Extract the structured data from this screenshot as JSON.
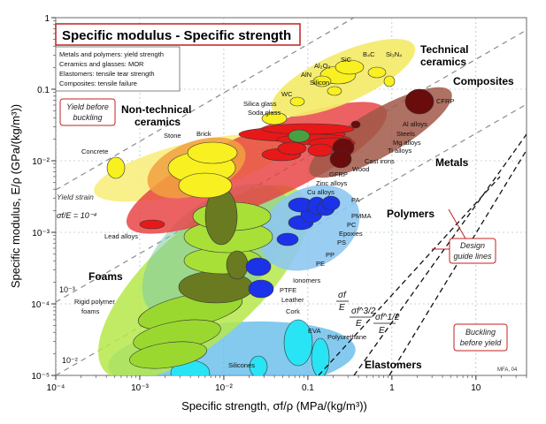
{
  "chart_data": {
    "type": "scatter",
    "title": "Specific modulus - Specific strength",
    "xlabel": "Specific strength, σf/ρ (MPa/(kg/m³))",
    "ylabel": "Specific modulus, E/ρ (GPa/(kg/m³))",
    "xscale": "log",
    "yscale": "log",
    "xlim": [
      0.0001,
      40
    ],
    "ylim": [
      1e-05,
      1
    ],
    "x_ticks": [
      "10⁻⁴",
      "10⁻³",
      "10⁻²",
      "0.1",
      "1",
      "10"
    ],
    "y_ticks": [
      "10⁻⁵",
      "10⁻⁴",
      "10⁻³",
      "10⁻²",
      "0.1",
      "1"
    ],
    "grid": true,
    "notes": [
      "Metals and polymers: yield strength",
      "Ceramics and glasses: MOR",
      "Elastomers: tensile tear strength",
      "Composites: tensile failure"
    ],
    "credit": "MFA, 04",
    "annotations": {
      "yield_before_buckling": "Yield before buckling",
      "buckling_before_yield": "Buckling before yield",
      "design_guide_lines": "Design guide lines",
      "yield_strain": "Yield strain",
      "yield_strain_value": "σf/E = 10⁻⁴",
      "strain_low": "10⁻³",
      "strain_high": "10⁻²",
      "guide_1": "σf/E",
      "guide_2": "σf^3/2/E",
      "guide_3": "σf^1/2/E"
    },
    "families": [
      {
        "name": "Technical ceramics",
        "x": [
          0.012,
          0.25
        ],
        "y": [
          0.012,
          0.6
        ],
        "color": "#f4e23a"
      },
      {
        "name": "Composites",
        "x": [
          0.12,
          3.5
        ],
        "y": [
          0.012,
          0.2
        ],
        "color": "#8b3a30"
      },
      {
        "name": "Non-technical ceramics",
        "x": [
          0.0004,
          0.07
        ],
        "y": [
          0.002,
          0.05
        ],
        "color": "#f0d040"
      },
      {
        "name": "Metals",
        "x": [
          0.001,
          0.9
        ],
        "y": [
          0.003,
          0.05
        ],
        "color": "#e03030"
      },
      {
        "name": "Polymers",
        "x": [
          0.012,
          0.25
        ],
        "y": [
          0.0002,
          0.003
        ],
        "color": "#3a62ff"
      },
      {
        "name": "Foams",
        "x": [
          0.0006,
          0.03
        ],
        "y": [
          1e-05,
          0.001
        ],
        "color": "#8bd830"
      },
      {
        "name": "Elastomers",
        "x": [
          0.0015,
          0.6
        ],
        "y": [
          1e-05,
          5e-05
        ],
        "color": "#27d8f0"
      }
    ],
    "labels": [
      "Al₂O₃",
      "SiC",
      "B₄C",
      "Si₃N₄",
      "AlN",
      "Silicon",
      "WC",
      "Silica glass",
      "Soda glass",
      "CFRP",
      "Al alloys",
      "Steels",
      "Mg alloys",
      "Ti alloys",
      "Cast irons",
      "Wood",
      "GFRP",
      "Zinc alloys",
      "Cu alloys",
      "Concrete",
      "Stone",
      "Brick",
      "Lead alloys",
      "PA",
      "PMMA",
      "PC",
      "Epoxies",
      "PS",
      "PP",
      "PE",
      "Ionomers",
      "PTFE",
      "Leather",
      "Cork",
      "Rigid polymer foams",
      "EVA",
      "Polyurethane",
      "Silicones"
    ]
  },
  "ui": {
    "title": "Specific modulus - Specific strength",
    "notes": [
      "Metals and polymers: yield strength",
      "Ceramics and glasses: MOR",
      "Elastomers: tensile tear strength",
      "Composites: tensile failure"
    ],
    "yield_before_buckling_1": "Yield before",
    "yield_before_buckling_2": "buckling",
    "buckling_before_yield_1": "Buckling",
    "buckling_before_yield_2": "before yield",
    "design_1": "Design",
    "design_2": "guide lines",
    "technical_1": "Technical",
    "technical_2": "ceramics",
    "nontechnical_1": "Non-technical",
    "nontechnical_2": "ceramics",
    "composites": "Composites",
    "metals": "Metals",
    "polymers": "Polymers",
    "foams": "Foams",
    "elastomers": "Elastomers",
    "yield_strain": "Yield strain",
    "yield_strain_ratio": "σf/E = 10⁻⁴",
    "strain_1e3": "10⁻³",
    "strain_1e2": "10⁻²",
    "guide_1": "σf",
    "guide_2": "σf^3/2",
    "guide_3": "σf^1/2",
    "guide_den": "E",
    "credit": "MFA, 04",
    "xlabel": "Specific strength, σf/ρ (MPa/(kg/m³))",
    "ylabel": "Specific modulus, E/ρ (GPa/(kg/m³))"
  }
}
